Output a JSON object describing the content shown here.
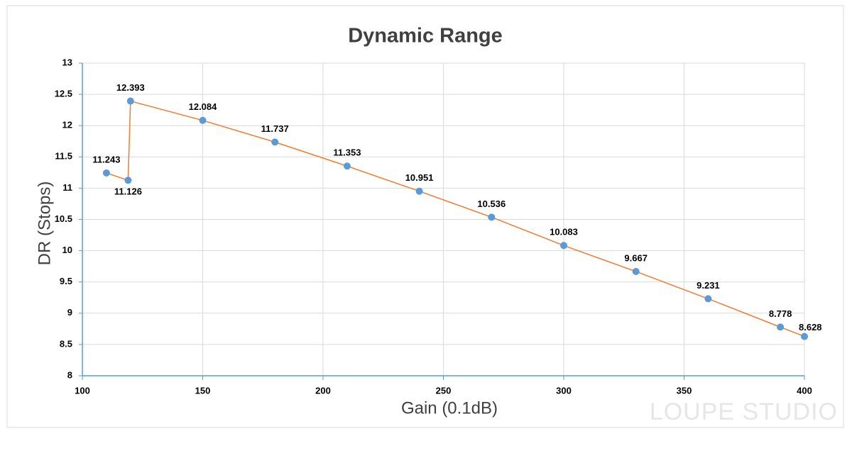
{
  "chart_data": {
    "type": "line",
    "title": "Dynamic Range",
    "x_label": "Gain (0.1dB)",
    "y_label": "DR (Stops)",
    "watermark": "LOUPE STUDIO",
    "x": [
      110,
      119,
      120,
      150,
      180,
      210,
      240,
      270,
      300,
      330,
      360,
      390,
      400
    ],
    "series": [
      {
        "color": "#ed7d31",
        "marker_color": "#5b9bd5",
        "values": [
          11.243,
          11.126,
          12.393,
          12.084,
          11.737,
          11.353,
          10.951,
          10.536,
          10.083,
          9.667,
          9.231,
          8.778,
          8.628
        ]
      }
    ],
    "xlim": [
      100,
      400
    ],
    "xticks": [
      100,
      150,
      200,
      250,
      300,
      350,
      400
    ],
    "ylim": [
      8,
      13
    ],
    "yticks": [
      8,
      8.5,
      9,
      9.5,
      10,
      10.5,
      11,
      11.5,
      12,
      12.5,
      13
    ],
    "grid": true
  }
}
